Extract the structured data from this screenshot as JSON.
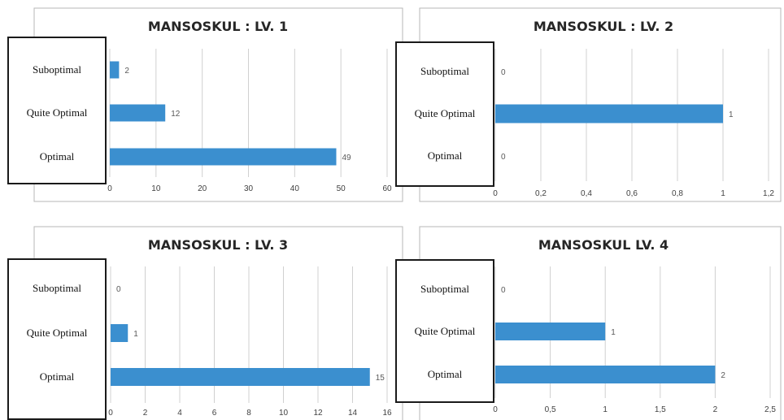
{
  "chart_data": [
    {
      "type": "bar",
      "orientation": "horizontal",
      "title": "MANSOSKUL : LV. 1",
      "categories": [
        "Suboptimal",
        "Quite Optimal",
        "Optimal"
      ],
      "values": [
        2,
        12,
        49
      ],
      "data_labels": [
        "2",
        "12",
        "49"
      ],
      "xlim": [
        0,
        60
      ],
      "x_ticks": [
        "0",
        "10",
        "20",
        "30",
        "40",
        "50",
        "60"
      ],
      "grid": true,
      "bar_color": "#3b8fcf"
    },
    {
      "type": "bar",
      "orientation": "horizontal",
      "title": "MANSOSKUL : LV. 2",
      "categories": [
        "Suboptimal",
        "Quite Optimal",
        "Optimal"
      ],
      "values": [
        0,
        1,
        0
      ],
      "data_labels": [
        "0",
        "1",
        "0"
      ],
      "xlim": [
        0,
        1.2
      ],
      "x_ticks": [
        "0",
        "0,2",
        "0,4",
        "0,6",
        "0,8",
        "1",
        "1,2"
      ],
      "grid": true,
      "bar_color": "#3b8fcf"
    },
    {
      "type": "bar",
      "orientation": "horizontal",
      "title": "MANSOSKUL : LV. 3",
      "categories": [
        "Suboptimal",
        "Quite Optimal",
        "Optimal"
      ],
      "values": [
        0,
        1,
        15
      ],
      "data_labels": [
        "0",
        "1",
        "15"
      ],
      "xlim": [
        0,
        16
      ],
      "x_ticks": [
        "0",
        "2",
        "4",
        "6",
        "8",
        "10",
        "12",
        "14",
        "16"
      ],
      "grid": true,
      "bar_color": "#3b8fcf"
    },
    {
      "type": "bar",
      "orientation": "horizontal",
      "title": "MANSOSKUL LV. 4",
      "categories": [
        "Suboptimal",
        "Quite Optimal",
        "Optimal"
      ],
      "values": [
        0,
        1,
        2
      ],
      "data_labels": [
        "0",
        "1",
        "2"
      ],
      "xlim": [
        0,
        2.5
      ],
      "x_ticks": [
        "0",
        "0,5",
        "1",
        "1,5",
        "2",
        "2,5"
      ],
      "grid": true,
      "bar_color": "#3b8fcf"
    }
  ]
}
